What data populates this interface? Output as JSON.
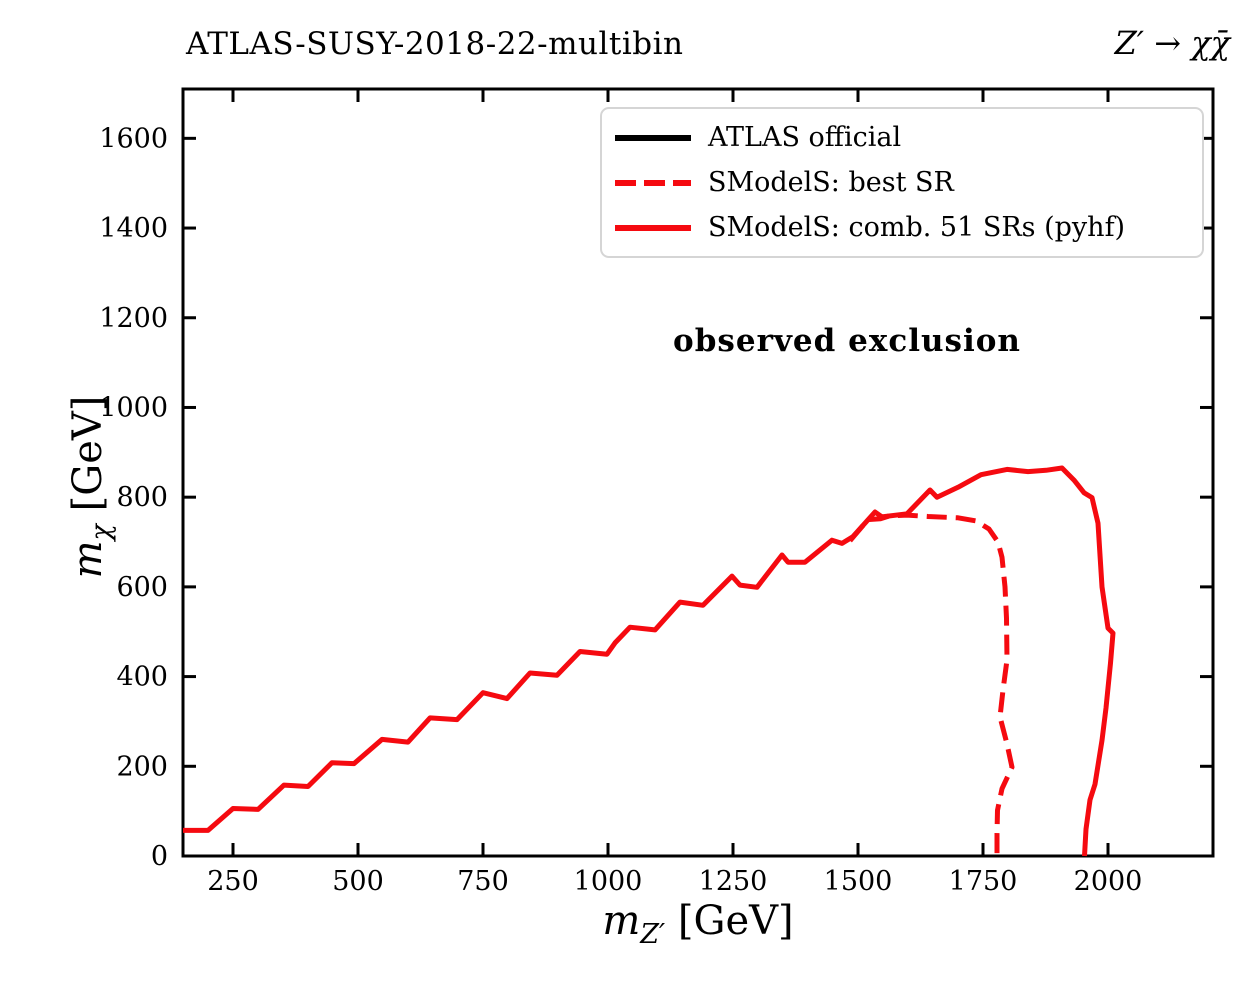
{
  "header": {
    "title_left": "ATLAS-SUSY-2018-22-multibin",
    "title_right": "Z′ → χχ̄"
  },
  "annotation": "observed exclusion",
  "legend": {
    "items": [
      {
        "label": "ATLAS official",
        "color": "#000000",
        "style": "solid"
      },
      {
        "label": "SModelS: best SR",
        "color": "#f50a10",
        "style": "dashed"
      },
      {
        "label": "SModelS: comb. 51 SRs (pyhf)",
        "color": "#f50a10",
        "style": "solid"
      }
    ]
  },
  "chart_data": {
    "type": "line",
    "title": "ATLAS-SUSY-2018-22-multibin",
    "subtitle": "Z′ → χχ̄",
    "xlabel": "m_Z′ [GeV]",
    "ylabel": "m_χ [GeV]",
    "xlim": [
      150,
      2210
    ],
    "ylim": [
      0,
      1710
    ],
    "xticks": [
      250,
      500,
      750,
      1000,
      1250,
      1500,
      1750,
      2000
    ],
    "yticks": [
      0,
      200,
      400,
      600,
      800,
      1000,
      1200,
      1400,
      1600
    ],
    "grid": false,
    "legend_position": "upper right",
    "axis_labels": {
      "x": {
        "var": "m",
        "sub": "Z′",
        "unit": "[GeV]"
      },
      "y": {
        "var": "m",
        "sub": "χ",
        "unit": "[GeV]"
      }
    },
    "series": [
      {
        "name": "ATLAS official",
        "color": "#000000",
        "dash": false,
        "points": []
      },
      {
        "name": "SModelS: best SR",
        "color": "#f50a10",
        "dash": true,
        "points": [
          [
            1484,
            703
          ],
          [
            1520,
            750
          ],
          [
            1545,
            752
          ],
          [
            1562,
            758
          ],
          [
            1598,
            760
          ],
          [
            1640,
            757
          ],
          [
            1700,
            754
          ],
          [
            1736,
            747
          ],
          [
            1762,
            729
          ],
          [
            1780,
            700
          ],
          [
            1788,
            666
          ],
          [
            1794,
            600
          ],
          [
            1797,
            530
          ],
          [
            1798,
            437
          ],
          [
            1790,
            370
          ],
          [
            1784,
            310
          ],
          [
            1798,
            250
          ],
          [
            1808,
            198
          ],
          [
            1788,
            150
          ],
          [
            1779,
            102
          ],
          [
            1778,
            50
          ],
          [
            1778,
            0
          ]
        ]
      },
      {
        "name": "SModelS: comb. 51 SRs (pyhf)",
        "color": "#f50a10",
        "dash": false,
        "points": [
          [
            150,
            57
          ],
          [
            200,
            57
          ],
          [
            250,
            106
          ],
          [
            300,
            104
          ],
          [
            352,
            158
          ],
          [
            400,
            155
          ],
          [
            448,
            208
          ],
          [
            492,
            206
          ],
          [
            548,
            260
          ],
          [
            600,
            254
          ],
          [
            644,
            308
          ],
          [
            698,
            304
          ],
          [
            750,
            364
          ],
          [
            798,
            351
          ],
          [
            844,
            408
          ],
          [
            898,
            403
          ],
          [
            944,
            456
          ],
          [
            998,
            450
          ],
          [
            1014,
            475
          ],
          [
            1044,
            510
          ],
          [
            1094,
            504
          ],
          [
            1144,
            566
          ],
          [
            1190,
            559
          ],
          [
            1248,
            624
          ],
          [
            1264,
            604
          ],
          [
            1298,
            599
          ],
          [
            1348,
            671
          ],
          [
            1360,
            655
          ],
          [
            1394,
            655
          ],
          [
            1448,
            704
          ],
          [
            1468,
            697
          ],
          [
            1490,
            712
          ],
          [
            1534,
            767
          ],
          [
            1548,
            756
          ],
          [
            1598,
            763
          ],
          [
            1644,
            816
          ],
          [
            1658,
            800
          ],
          [
            1700,
            822
          ],
          [
            1746,
            850
          ],
          [
            1798,
            862
          ],
          [
            1840,
            857
          ],
          [
            1876,
            860
          ],
          [
            1908,
            865
          ],
          [
            1932,
            838
          ],
          [
            1952,
            810
          ],
          [
            1968,
            799
          ],
          [
            1980,
            742
          ],
          [
            1988,
            600
          ],
          [
            2000,
            508
          ],
          [
            2010,
            497
          ],
          [
            2005,
            430
          ],
          [
            1996,
            330
          ],
          [
            1988,
            258
          ],
          [
            1974,
            160
          ],
          [
            1964,
            125
          ],
          [
            1956,
            60
          ],
          [
            1953,
            0
          ]
        ]
      }
    ]
  }
}
